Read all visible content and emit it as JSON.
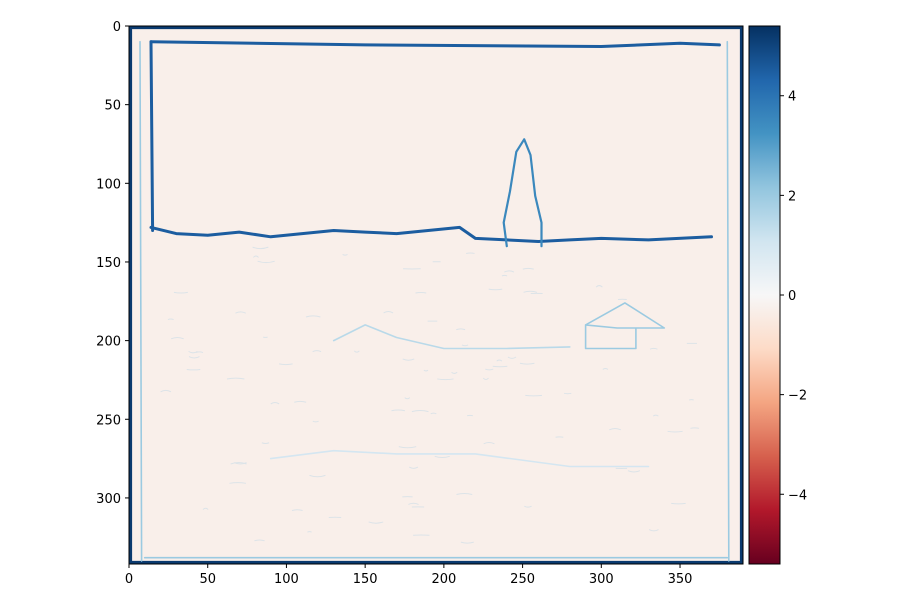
{
  "chart_data": {
    "type": "heatmap",
    "title": "",
    "xlabel": "",
    "ylabel": "",
    "xlim": [
      0,
      390
    ],
    "ylim": [
      0,
      342
    ],
    "y_inverted": true,
    "x_ticks": [
      0,
      50,
      100,
      150,
      200,
      250,
      300,
      350
    ],
    "x_tick_labels": [
      "0",
      "50",
      "100",
      "150",
      "200",
      "250",
      "300",
      "350"
    ],
    "y_ticks": [
      0,
      50,
      100,
      150,
      200,
      250,
      300
    ],
    "y_tick_labels": [
      "0",
      "50",
      "100",
      "150",
      "200",
      "250",
      "300"
    ],
    "colormap": "RdBu",
    "color_range": [
      -5.4,
      5.4
    ],
    "colorbar": {
      "ticks": [
        4,
        2,
        0,
        -2,
        -4
      ],
      "tick_labels": [
        "4",
        "2",
        "0",
        "−2",
        "−4"
      ]
    },
    "background_value": -0.3,
    "colors": {
      "background": "#fbe6dc",
      "strong_edge": "#0b4f8a",
      "medium_edge": "#3e8cc2",
      "light_edge": "#a8cfe6"
    },
    "features": [
      {
        "name": "frame outer border",
        "value": 5.2,
        "points": [
          [
            1,
            1
          ],
          [
            389,
            1
          ],
          [
            389,
            341
          ],
          [
            1,
            341
          ]
        ]
      },
      {
        "name": "inner frame top",
        "value": 4.5,
        "points": [
          [
            14,
            10
          ],
          [
            150,
            12
          ],
          [
            300,
            13
          ],
          [
            350,
            11
          ],
          [
            375,
            12
          ]
        ]
      },
      {
        "name": "inner frame left",
        "value": 4.5,
        "points": [
          [
            14,
            10
          ],
          [
            15,
            130
          ]
        ]
      },
      {
        "name": "horizon edge",
        "value": 4.5,
        "points": [
          [
            14,
            128
          ],
          [
            30,
            132
          ],
          [
            50,
            133
          ],
          [
            70,
            131
          ],
          [
            90,
            134
          ],
          [
            110,
            132
          ],
          [
            130,
            130
          ],
          [
            150,
            131
          ],
          [
            170,
            132
          ],
          [
            190,
            130
          ],
          [
            210,
            128
          ],
          [
            220,
            135
          ],
          [
            240,
            136
          ],
          [
            260,
            137
          ],
          [
            280,
            136
          ],
          [
            300,
            135
          ],
          [
            330,
            136
          ],
          [
            370,
            134
          ]
        ]
      },
      {
        "name": "church building",
        "value": 3.5,
        "points": [
          [
            240,
            140
          ],
          [
            238,
            125
          ],
          [
            242,
            105
          ],
          [
            246,
            80
          ],
          [
            251,
            72
          ],
          [
            255,
            82
          ],
          [
            258,
            108
          ],
          [
            262,
            125
          ],
          [
            262,
            140
          ]
        ]
      },
      {
        "name": "left frame band",
        "value": 2.0,
        "points": [
          [
            7,
            10
          ],
          [
            8,
            340
          ]
        ]
      },
      {
        "name": "right frame band",
        "value": 2.0,
        "points": [
          [
            380,
            10
          ],
          [
            381,
            340
          ]
        ]
      },
      {
        "name": "bottom frame band",
        "value": 2.0,
        "points": [
          [
            10,
            338
          ],
          [
            380,
            338
          ]
        ]
      },
      {
        "name": "house sketch",
        "value": 2.0,
        "points": [
          [
            290,
            190
          ],
          [
            315,
            176
          ],
          [
            340,
            192
          ],
          [
            310,
            192
          ],
          [
            290,
            190
          ],
          [
            290,
            205
          ],
          [
            322,
            205
          ],
          [
            322,
            192
          ]
        ]
      },
      {
        "name": "river bank",
        "value": 1.5,
        "points": [
          [
            130,
            200
          ],
          [
            150,
            190
          ],
          [
            170,
            198
          ],
          [
            200,
            205
          ],
          [
            240,
            205
          ],
          [
            280,
            204
          ]
        ]
      },
      {
        "name": "foreground ground",
        "value": 1.0,
        "points": [
          [
            90,
            275
          ],
          [
            130,
            270
          ],
          [
            170,
            272
          ],
          [
            220,
            272
          ],
          [
            280,
            280
          ],
          [
            330,
            280
          ]
        ]
      }
    ]
  }
}
